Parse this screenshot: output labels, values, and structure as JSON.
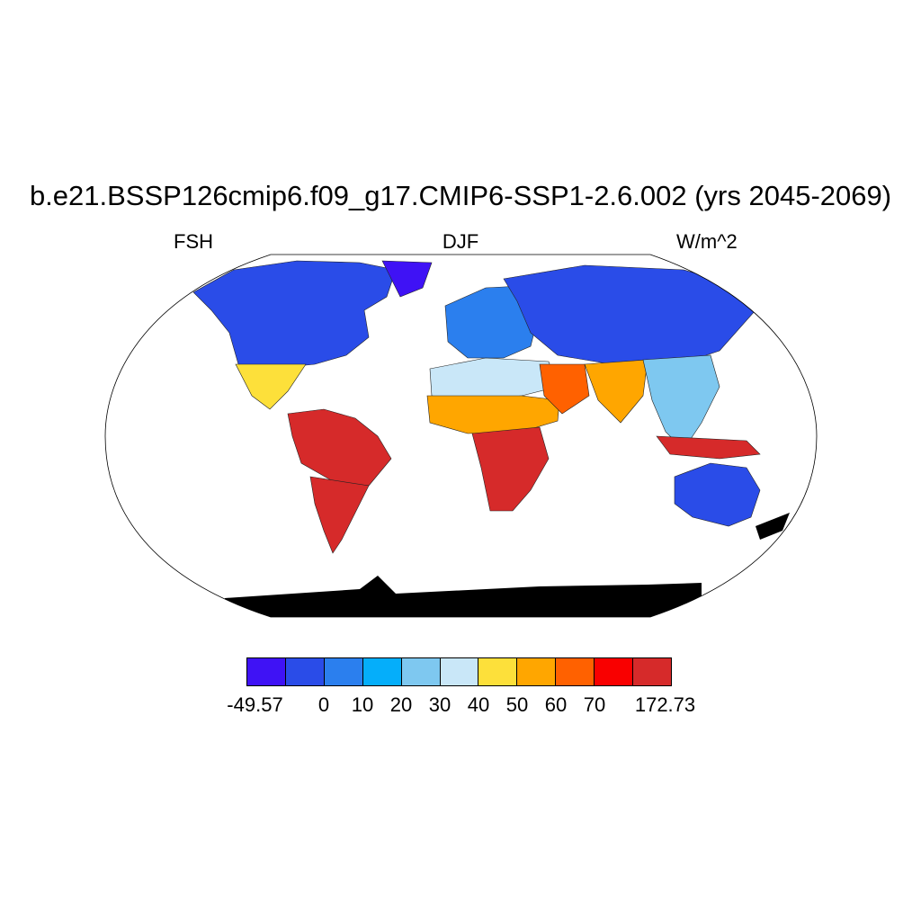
{
  "title": "b.e21.BSSP126cmip6.f09_g17.CMIP6-SSP1-2.6.002 (yrs 2045-2069)",
  "variable": "FSH",
  "season": "DJF",
  "units": "W/m^2",
  "projection": "Robinson",
  "colorbar": {
    "colors": [
      "#3f12f5",
      "#2a4ce8",
      "#2b7fee",
      "#05aefa",
      "#7ec8f0",
      "#c9e7f8",
      "#fde03a",
      "#ffa600",
      "#ff6100",
      "#f90000",
      "#d62a2a"
    ],
    "labels": [
      "-49.57",
      "0",
      "10",
      "20",
      "30",
      "40",
      "50",
      "60",
      "70",
      "172.73"
    ],
    "boundaries": [
      -49.57,
      0,
      10,
      20,
      30,
      40,
      50,
      60,
      70,
      172.73
    ]
  },
  "regions": [
    {
      "name": "Northern North America",
      "color": "#2a4ce8"
    },
    {
      "name": "Greenland",
      "color": "#3f12f5"
    },
    {
      "name": "Mexico",
      "color": "#fde03a"
    },
    {
      "name": "Northern South America",
      "color": "#d62a2a"
    },
    {
      "name": "Southern South America",
      "color": "#d62a2a"
    },
    {
      "name": "Europe",
      "color": "#2b7fee"
    },
    {
      "name": "Siberia",
      "color": "#2a4ce8"
    },
    {
      "name": "Sahara",
      "color": "#c9e7f8"
    },
    {
      "name": "Sahel",
      "color": "#ffa600"
    },
    {
      "name": "Southern Africa",
      "color": "#d62a2a"
    },
    {
      "name": "Arabia",
      "color": "#ff6100"
    },
    {
      "name": "Indian Subcontinent",
      "color": "#ffa600"
    },
    {
      "name": "Southeast Asia",
      "color": "#7ec8f0"
    },
    {
      "name": "Australia",
      "color": "#d62a2a"
    },
    {
      "name": "Antarctica",
      "color": "#2a4ce8"
    }
  ]
}
